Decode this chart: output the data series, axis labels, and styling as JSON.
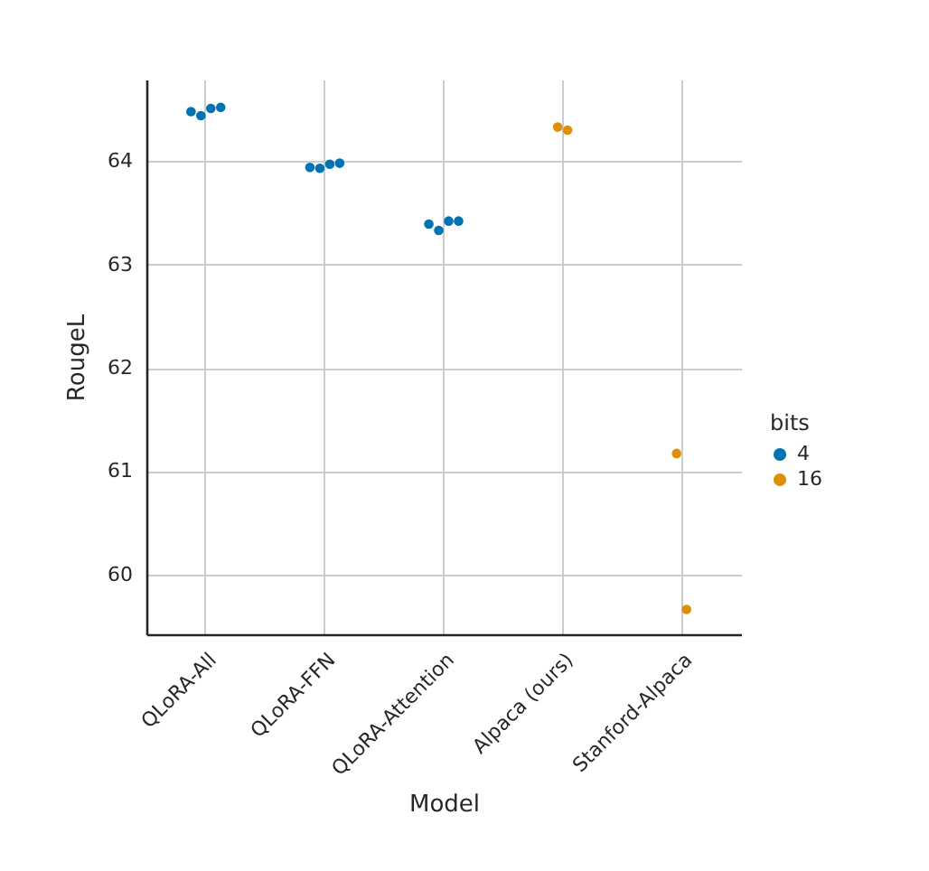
{
  "chart_data": {
    "type": "scatter",
    "xlabel": "Model",
    "ylabel": "RougeL",
    "legend_title": "bits",
    "categories": [
      "QLoRA-All",
      "QLoRA-FFN",
      "QLoRA-Attention",
      "Alpaca (ours)",
      "Stanford-Alpaca"
    ],
    "series": [
      {
        "name": "4",
        "color": "#0173b2",
        "x": [
          "QLoRA-All",
          "QLoRA-All",
          "QLoRA-All",
          "QLoRA-All",
          "QLoRA-FFN",
          "QLoRA-FFN",
          "QLoRA-FFN",
          "QLoRA-FFN",
          "QLoRA-Attention",
          "QLoRA-Attention",
          "QLoRA-Attention",
          "QLoRA-Attention"
        ],
        "values": [
          64.48,
          64.44,
          64.51,
          64.52,
          63.94,
          63.93,
          63.97,
          63.98,
          63.39,
          63.33,
          63.42,
          63.42
        ]
      },
      {
        "name": "16",
        "color": "#de8f05",
        "x": [
          "Alpaca (ours)",
          "Alpaca (ours)",
          "Stanford-Alpaca",
          "Stanford-Alpaca"
        ],
        "values": [
          64.33,
          64.3,
          61.17,
          59.66
        ]
      }
    ],
    "ylim": [
      59.42,
      64.79
    ],
    "yticks": [
      60,
      61,
      62,
      63,
      64
    ],
    "grid": true,
    "legend": "right",
    "marker": "circle"
  }
}
